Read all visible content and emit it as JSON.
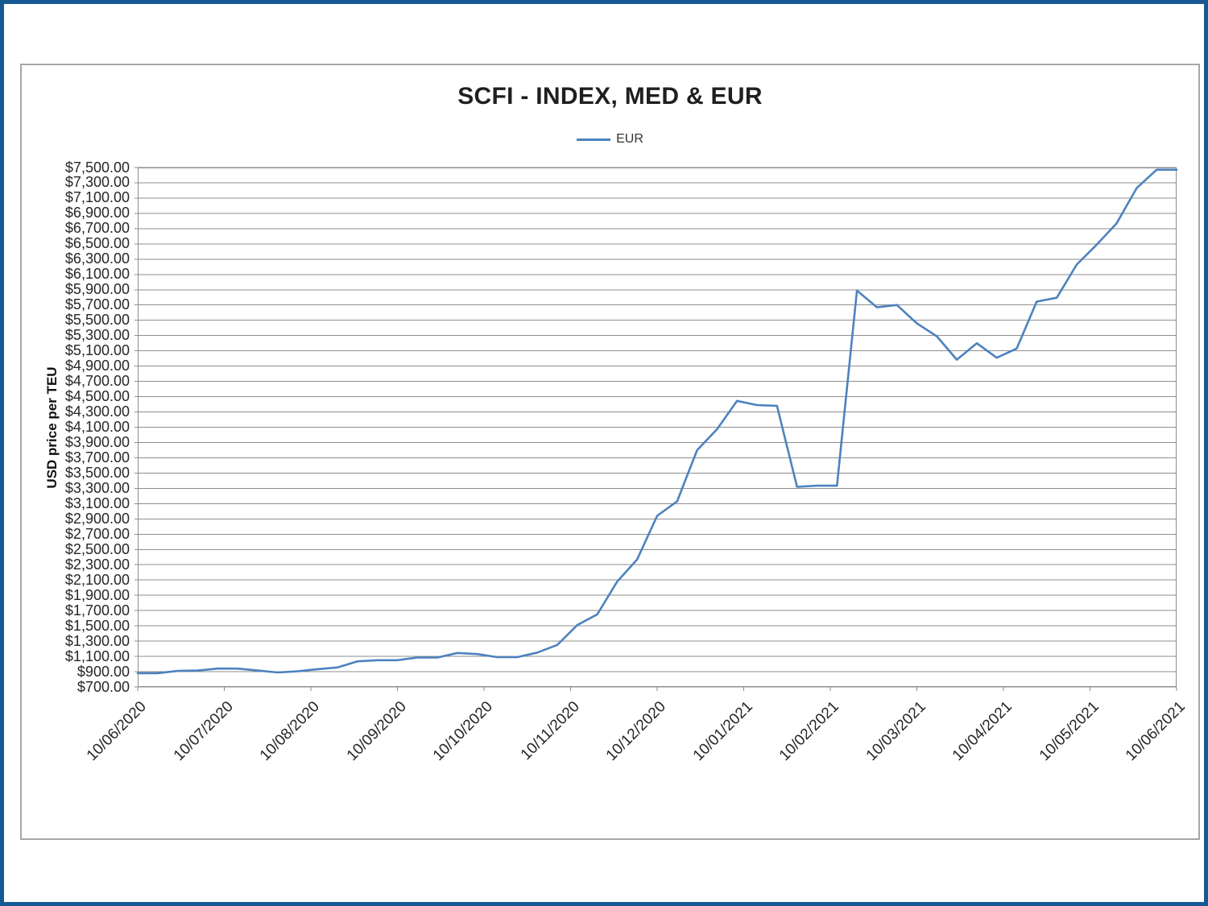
{
  "frame_color": "#175a93",
  "chart_data": {
    "type": "line",
    "title": "SCFI - INDEX, MED & EUR",
    "xlabel": "",
    "ylabel": "USD price per TEU",
    "legend": {
      "position": "top-center",
      "entries": [
        {
          "label": "EUR",
          "color": "#4d82be"
        }
      ]
    },
    "ylim": [
      700,
      7500
    ],
    "y_tick_step": 200,
    "y_tick_labels": [
      "$7,500.00",
      "$7,300.00",
      "$7,100.00",
      "$6,900.00",
      "$6,700.00",
      "$6,500.00",
      "$6,300.00",
      "$6,100.00",
      "$5,900.00",
      "$5,700.00",
      "$5,500.00",
      "$5,300.00",
      "$5,100.00",
      "$4,900.00",
      "$4,700.00",
      "$4,500.00",
      "$4,300.00",
      "$4,100.00",
      "$3,900.00",
      "$3,700.00",
      "$3,500.00",
      "$3,300.00",
      "$3,100.00",
      "$2,900.00",
      "$2,700.00",
      "$2,500.00",
      "$2,300.00",
      "$2,100.00",
      "$1,900.00",
      "$1,700.00",
      "$1,500.00",
      "$1,300.00",
      "$1,100.00",
      "$900.00",
      "$700.00"
    ],
    "x_tick_labels": [
      "10/06/2020",
      "10/07/2020",
      "10/08/2020",
      "10/09/2020",
      "10/10/2020",
      "10/11/2020",
      "10/12/2020",
      "10/01/2021",
      "10/02/2021",
      "10/03/2021",
      "10/04/2021",
      "10/05/2021",
      "10/06/2021"
    ],
    "grid": "horizontal",
    "series": [
      {
        "name": "EUR",
        "frequency": "weekly",
        "values": [
          880,
          880,
          910,
          915,
          940,
          940,
          915,
          890,
          905,
          933,
          955,
          1035,
          1050,
          1050,
          1085,
          1085,
          1145,
          1130,
          1090,
          1090,
          1150,
          1250,
          1510,
          1650,
          2080,
          2370,
          2940,
          3130,
          3800,
          4075,
          4445,
          4390,
          4380,
          3320,
          3335,
          3335,
          5890,
          5670,
          5700,
          5460,
          5290,
          4985,
          5200,
          5010,
          5130,
          5745,
          5795,
          6230,
          6490,
          6770,
          7230,
          7470,
          7470
        ]
      }
    ],
    "colors": {
      "line": "#4d82be",
      "gridline": "#8e8e8e",
      "plot_border": "#8e8e8e",
      "axis_text": "#262626"
    }
  }
}
